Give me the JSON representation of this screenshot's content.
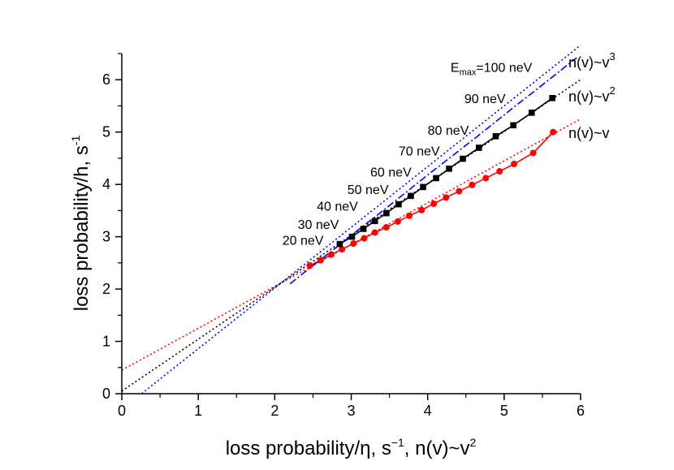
{
  "chart_data": {
    "type": "line",
    "title": "",
    "xlabel_pre": "loss probability/",
    "xlabel_eta": "η",
    "xlabel_mid": ", s",
    "xlabel_exp": "−1",
    "xlabel_post": ", n(v)~v",
    "xlabel_post_exp": "2",
    "ylabel_main": "loss probability/h, s",
    "ylabel_exp": "-1",
    "xlim": [
      0,
      6
    ],
    "ylim": [
      0,
      6.5
    ],
    "x_ticks": [
      "0",
      "1",
      "2",
      "3",
      "4",
      "5",
      "6"
    ],
    "y_ticks": [
      "0",
      "1",
      "2",
      "3",
      "4",
      "5",
      "6"
    ],
    "grid": false,
    "series": [
      {
        "name": "n(v)~v",
        "name_base": "n(v)~v",
        "name_exp": "",
        "color": "#ff0000",
        "marker": "circle",
        "x": [
          2.46,
          2.6,
          2.74,
          2.88,
          3.03,
          3.17,
          3.31,
          3.46,
          3.61,
          3.76,
          3.92,
          4.08,
          4.24,
          4.41,
          4.58,
          4.76,
          4.94,
          5.13,
          5.38,
          5.64
        ],
        "y": [
          2.45,
          2.55,
          2.66,
          2.76,
          2.87,
          2.97,
          3.08,
          3.18,
          3.29,
          3.4,
          3.51,
          3.63,
          3.75,
          3.87,
          3.99,
          4.12,
          4.25,
          4.39,
          4.6,
          5.0
        ],
        "fit": {
          "slope": 0.8,
          "intercept": 0.45,
          "x_range": [
            0,
            6
          ]
        }
      },
      {
        "name": "n(v)~v2",
        "name_base": "n(v)~v",
        "name_exp": "2",
        "color": "#000000",
        "marker": "square",
        "x": [
          2.85,
          3.01,
          3.16,
          3.31,
          3.46,
          3.62,
          3.78,
          3.94,
          4.11,
          4.28,
          4.46,
          4.67,
          4.89,
          5.12,
          5.36,
          5.63
        ],
        "y": [
          2.86,
          3.0,
          3.15,
          3.3,
          3.45,
          3.62,
          3.78,
          3.95,
          4.12,
          4.3,
          4.49,
          4.7,
          4.92,
          5.13,
          5.37,
          5.65
        ],
        "fit": {
          "slope": 0.992,
          "intercept": 0.05,
          "x_range": [
            0,
            6
          ]
        }
      },
      {
        "name": "n(v)~v3",
        "name_base": "n(v)~v",
        "name_exp": "3",
        "color": "#0000ff",
        "marker": "none",
        "x": [
          2.2,
          2.5,
          2.8,
          3.1,
          3.4,
          3.7,
          4.0,
          4.3,
          4.6,
          4.9,
          5.2,
          5.5,
          5.8,
          5.95
        ],
        "y": [
          2.1,
          2.45,
          2.79,
          3.14,
          3.48,
          3.83,
          4.18,
          4.52,
          4.86,
          5.21,
          5.56,
          5.9,
          6.25,
          6.42
        ],
        "fit": {
          "slope": 1.16,
          "intercept": -0.3,
          "x_range": [
            0.26,
            6
          ]
        }
      }
    ],
    "annotations": [
      {
        "base": "20 neV",
        "sub": "",
        "rest": "",
        "x": 2.1,
        "y": 2.85
      },
      {
        "base": "30 neV",
        "sub": "",
        "rest": "",
        "x": 2.3,
        "y": 3.15
      },
      {
        "base": "40 neV",
        "sub": "",
        "rest": "",
        "x": 2.55,
        "y": 3.5
      },
      {
        "base": "50 neV",
        "sub": "",
        "rest": "",
        "x": 2.95,
        "y": 3.82
      },
      {
        "base": "60 neV",
        "sub": "",
        "rest": "",
        "x": 3.25,
        "y": 4.15
      },
      {
        "base": "70 neV",
        "sub": "",
        "rest": "",
        "x": 3.62,
        "y": 4.55
      },
      {
        "base": "80 neV",
        "sub": "",
        "rest": "",
        "x": 4.0,
        "y": 4.95
      },
      {
        "base": "90 neV",
        "sub": "",
        "rest": "",
        "x": 4.48,
        "y": 5.55
      },
      {
        "base": "E",
        "sub": "max",
        "rest": "=100 neV",
        "x": 4.3,
        "y": 6.15
      }
    ]
  }
}
